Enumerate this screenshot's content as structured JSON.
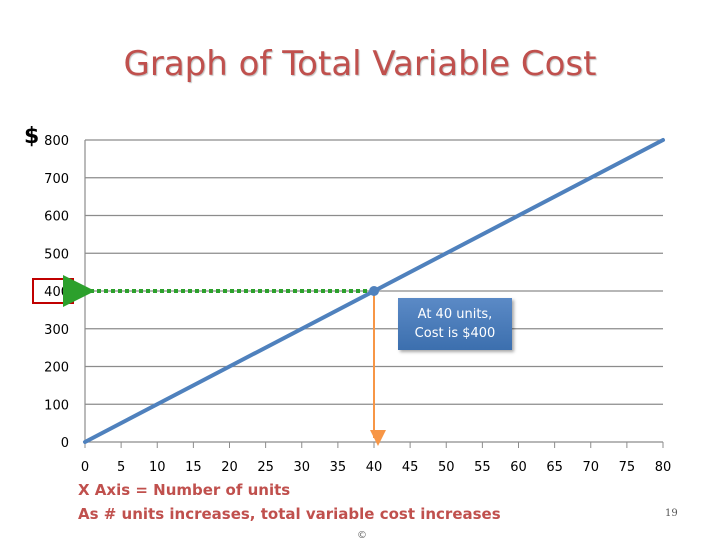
{
  "title": "Graph of Total Variable Cost",
  "currency_symbol": "$",
  "callout": {
    "line1": "At 40 units,",
    "line2": "Cost is $400"
  },
  "notes": {
    "xaxis": "X Axis = Number of units",
    "trend": "As # units increases, total variable cost increases"
  },
  "page_number": "19",
  "copyright": "©",
  "colors": {
    "title": "#c0504d",
    "line": "#4f81bd",
    "horizontal_guide": "#2ca02c",
    "vertical_guide": "#f79646",
    "highlight_box": "#c00000",
    "callout": "#4f81bd"
  },
  "chart_data": {
    "type": "line",
    "series": [
      {
        "x": [
          0,
          80
        ],
        "y": [
          0,
          800
        ]
      }
    ],
    "x_ticks": [
      "0",
      "5",
      "10",
      "15",
      "20",
      "25",
      "30",
      "35",
      "40",
      "45",
      "50",
      "55",
      "60",
      "65",
      "70",
      "75",
      "80"
    ],
    "y_ticks": [
      "0",
      "100",
      "200",
      "300",
      "400",
      "500",
      "600",
      "700",
      "800"
    ],
    "xlim": [
      0,
      80
    ],
    "ylim": [
      0,
      800
    ],
    "grid": "horizontal",
    "highlight_point": {
      "x": 40,
      "y": 400
    },
    "highlighted_y_tick": "400"
  }
}
